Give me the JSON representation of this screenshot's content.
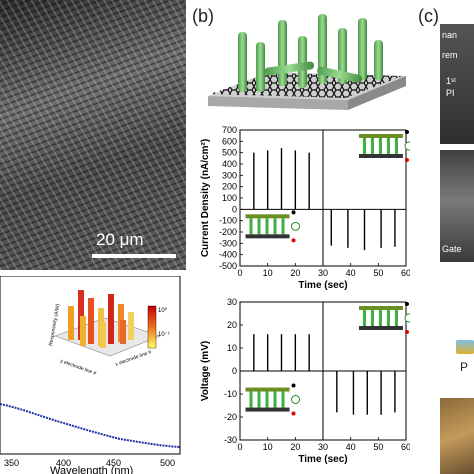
{
  "panels": {
    "b_label": "(b)",
    "c_label": "(c)"
  },
  "sem": {
    "scale_label": "20 μm"
  },
  "spectrum": {
    "xlabel": "Wavelength (nm)",
    "x_ticks": [
      "350",
      "400",
      "450",
      "500"
    ],
    "inset": {
      "ylabel": "Responsivity (A/W)",
      "y_electrode": "y electrode line #",
      "x_electrode": "x electrode line #",
      "colorbar_ticks": [
        "10⁰",
        "10⁻¹"
      ]
    },
    "line_color": "#1f2fa8"
  },
  "panel_c": {
    "text_1": "nan",
    "text_2": "rem",
    "text_3": "1ˢᵗ",
    "text_4": "PI",
    "text_5": "Gate",
    "text_6": "P"
  },
  "chart_data": [
    {
      "type": "line",
      "title": "",
      "xlabel": "Time (sec)",
      "ylabel": "Current Density (nA/cm²)",
      "xlim": [
        0,
        60
      ],
      "ylim": [
        -500,
        700
      ],
      "x_ticks": [
        0,
        10,
        20,
        30,
        40,
        50,
        60
      ],
      "y_ticks": [
        -500,
        -400,
        -300,
        -200,
        -100,
        0,
        100,
        200,
        300,
        400,
        500,
        600,
        700
      ],
      "grid": false,
      "series": [
        {
          "values_x": [
            5,
            10,
            15,
            20,
            25
          ],
          "values_y": [
            500,
            520,
            540,
            520,
            500
          ]
        },
        {
          "values_x": [
            33,
            39,
            45,
            51,
            56
          ],
          "values_y": [
            -320,
            -340,
            -360,
            -340,
            -330
          ]
        }
      ]
    },
    {
      "type": "line",
      "title": "",
      "xlabel": "Time (sec)",
      "ylabel": "Voltage (mV)",
      "xlim": [
        0,
        60
      ],
      "ylim": [
        -30,
        30
      ],
      "x_ticks": [
        0,
        10,
        20,
        30,
        40,
        50,
        60
      ],
      "y_ticks": [
        -30,
        -20,
        -10,
        0,
        10,
        20,
        30
      ],
      "grid": false,
      "series": [
        {
          "values_x": [
            5,
            10,
            15,
            20,
            25
          ],
          "values_y": [
            16,
            16,
            16,
            16,
            16
          ]
        },
        {
          "values_x": [
            35,
            41,
            46,
            51,
            56
          ],
          "values_y": [
            -18,
            -19,
            -19,
            -19,
            -18
          ]
        }
      ]
    }
  ]
}
